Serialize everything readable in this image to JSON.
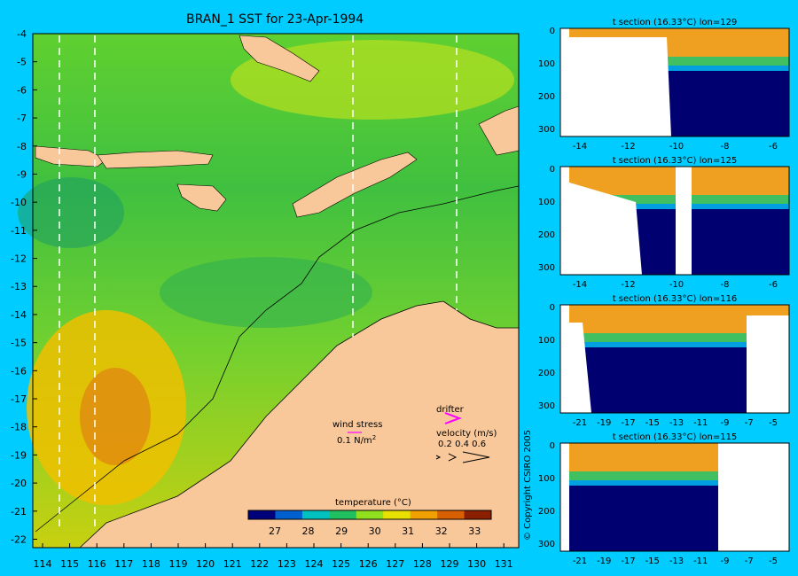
{
  "main_map": {
    "title": "BRAN_1 SST for 23-Apr-1994",
    "lat_ticks": [
      "-4",
      "-5",
      "-6",
      "-7",
      "-8",
      "-9",
      "-10",
      "-11",
      "-12",
      "-13",
      "-14",
      "-15",
      "-16",
      "-17",
      "-18",
      "-19",
      "-20",
      "-21",
      "-22"
    ],
    "lon_ticks": [
      "114",
      "115",
      "116",
      "117",
      "118",
      "119",
      "120",
      "121",
      "122",
      "123",
      "124",
      "125",
      "126",
      "127",
      "128",
      "129",
      "130",
      "131"
    ],
    "section_longitudes": [
      114.5,
      115.8,
      125.4,
      129.2
    ],
    "colorbar": {
      "label": "temperature (°C)",
      "ticks": [
        "27",
        "28",
        "29",
        "30",
        "31",
        "32",
        "33"
      ],
      "range": [
        26.2,
        33.5
      ],
      "colors": [
        "#00007a",
        "#0060d0",
        "#00c0c0",
        "#20c060",
        "#90e020",
        "#e8e000",
        "#f0a000",
        "#d86000",
        "#8a2000"
      ]
    },
    "wind_stress": {
      "label": "wind stress",
      "scale": "0.1 N/m",
      "exponent": "2"
    },
    "drifter": {
      "label": "drifter"
    },
    "velocity": {
      "label": "velocity (m/s)",
      "values": "0.2 0.4 0.6"
    }
  },
  "sections": [
    {
      "title": "t section (16.33°C) lon=129",
      "y_ticks": [
        "0",
        "100",
        "200",
        "300"
      ],
      "x_ticks": [
        "-14",
        "-12",
        "-10",
        "-8",
        "-6"
      ]
    },
    {
      "title": "t section (16.33°C) lon=125",
      "y_ticks": [
        "0",
        "100",
        "200",
        "300"
      ],
      "x_ticks": [
        "-14",
        "-12",
        "-10",
        "-8",
        "-6"
      ]
    },
    {
      "title": "t section (16.33°C) lon=116",
      "y_ticks": [
        "0",
        "100",
        "200",
        "300"
      ],
      "x_ticks": [
        "-21",
        "-19",
        "-17",
        "-15",
        "-13",
        "-11",
        "-9",
        "-7",
        "-5"
      ]
    },
    {
      "title": "t section (16.33°C) lon=115",
      "y_ticks": [
        "0",
        "100",
        "200",
        "300"
      ],
      "x_ticks": [
        "-21",
        "-19",
        "-17",
        "-15",
        "-13",
        "-11",
        "-9",
        "-7",
        "-5"
      ]
    }
  ],
  "copyright": "© Copyright CSIRO 2005"
}
